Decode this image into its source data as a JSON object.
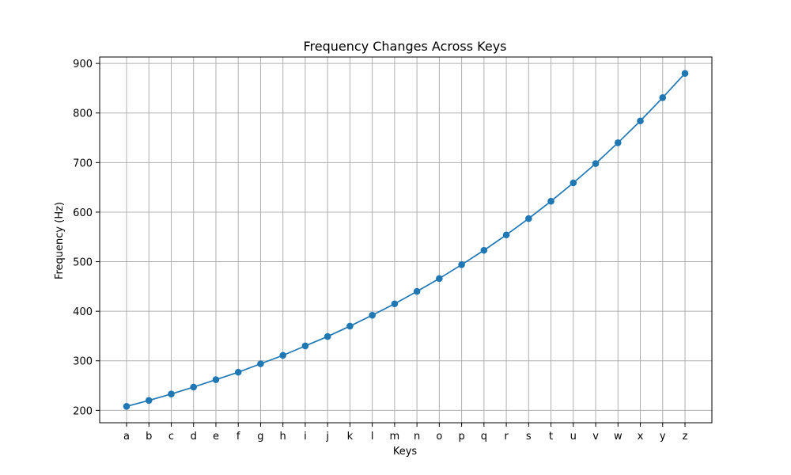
{
  "chart_data": {
    "type": "line",
    "title": "Frequency Changes Across Keys",
    "xlabel": "Keys",
    "ylabel": "Frequency (Hz)",
    "categories": [
      "a",
      "b",
      "c",
      "d",
      "e",
      "f",
      "g",
      "h",
      "i",
      "j",
      "k",
      "l",
      "m",
      "n",
      "o",
      "p",
      "q",
      "r",
      "s",
      "t",
      "u",
      "v",
      "w",
      "x",
      "y",
      "z"
    ],
    "series": [
      {
        "values": [
          208,
          220,
          233,
          247,
          262,
          277,
          294,
          311,
          330,
          349,
          370,
          392,
          415,
          440,
          466,
          494,
          523,
          554,
          587,
          622,
          659,
          698,
          740,
          784,
          831,
          880
        ]
      }
    ],
    "yticks": [
      200,
      300,
      400,
      500,
      600,
      700,
      800,
      900
    ],
    "ylim": [
      175,
      913
    ],
    "grid": true,
    "marker": "circle",
    "line_color": "#1f77b4",
    "grid_color": "#b0b0b0"
  }
}
